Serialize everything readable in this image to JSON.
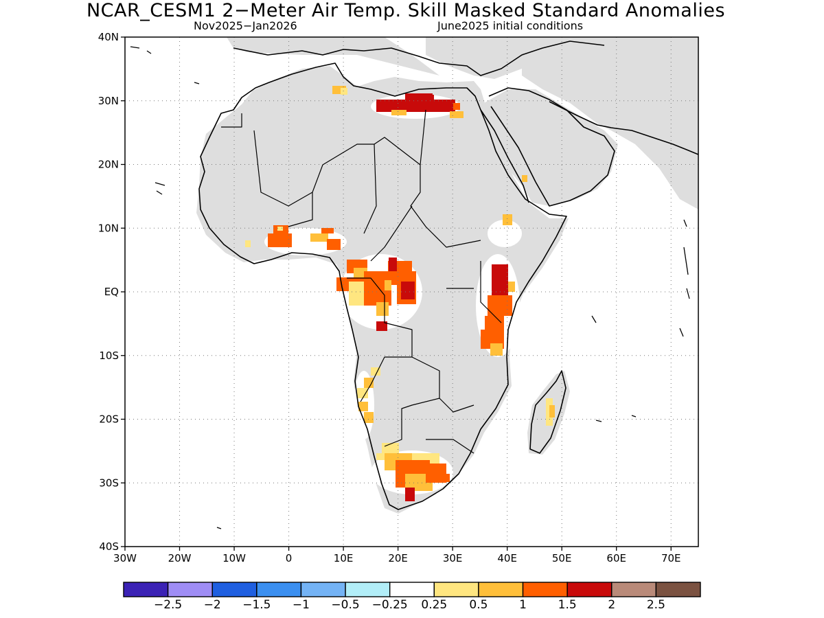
{
  "title": "NCAR_CESM1 2−Meter Air Temp. Skill Masked Standard Anomalies",
  "subtitle_left": "Nov2025−Jan2026",
  "subtitle_right": "June2025 initial conditions",
  "lat_ticks": [
    "40N",
    "30N",
    "20N",
    "10N",
    "EQ",
    "10S",
    "20S",
    "30S",
    "40S"
  ],
  "lon_ticks": [
    "30W",
    "20W",
    "10W",
    "0",
    "10E",
    "20E",
    "30E",
    "40E",
    "50E",
    "60E",
    "70E"
  ],
  "colorbar": {
    "colors": [
      "#3b22b5",
      "#9f8df5",
      "#1f5fe0",
      "#3b8ff0",
      "#74b3f5",
      "#b2eef8",
      "#ffffff",
      "#ffe680",
      "#ffbf3a",
      "#ff5f00",
      "#c80a0a",
      "#b98a79",
      "#7b5241"
    ],
    "labels": [
      "−2.5",
      "−2",
      "−1.5",
      "−1",
      "−0.5",
      "−0.25",
      "0.25",
      "0.5",
      "1",
      "1.5",
      "2",
      "2.5"
    ]
  },
  "colors": {
    "land_mask": "#dedede",
    "ocean": "#ffffff",
    "coast": "#000000"
  },
  "anomaly_regions": [
    {
      "region": "Libya/Egypt coast",
      "level": "2"
    },
    {
      "region": "Central Africa (Gabon/Congo)",
      "level": "1.5-2"
    },
    {
      "region": "East Africa (Kenya/Tanzania)",
      "level": "1.5-2"
    },
    {
      "region": "Southern Africa",
      "level": "1-1.5"
    },
    {
      "region": "Gulf of Guinea coast",
      "level": "1-1.5"
    }
  ]
}
